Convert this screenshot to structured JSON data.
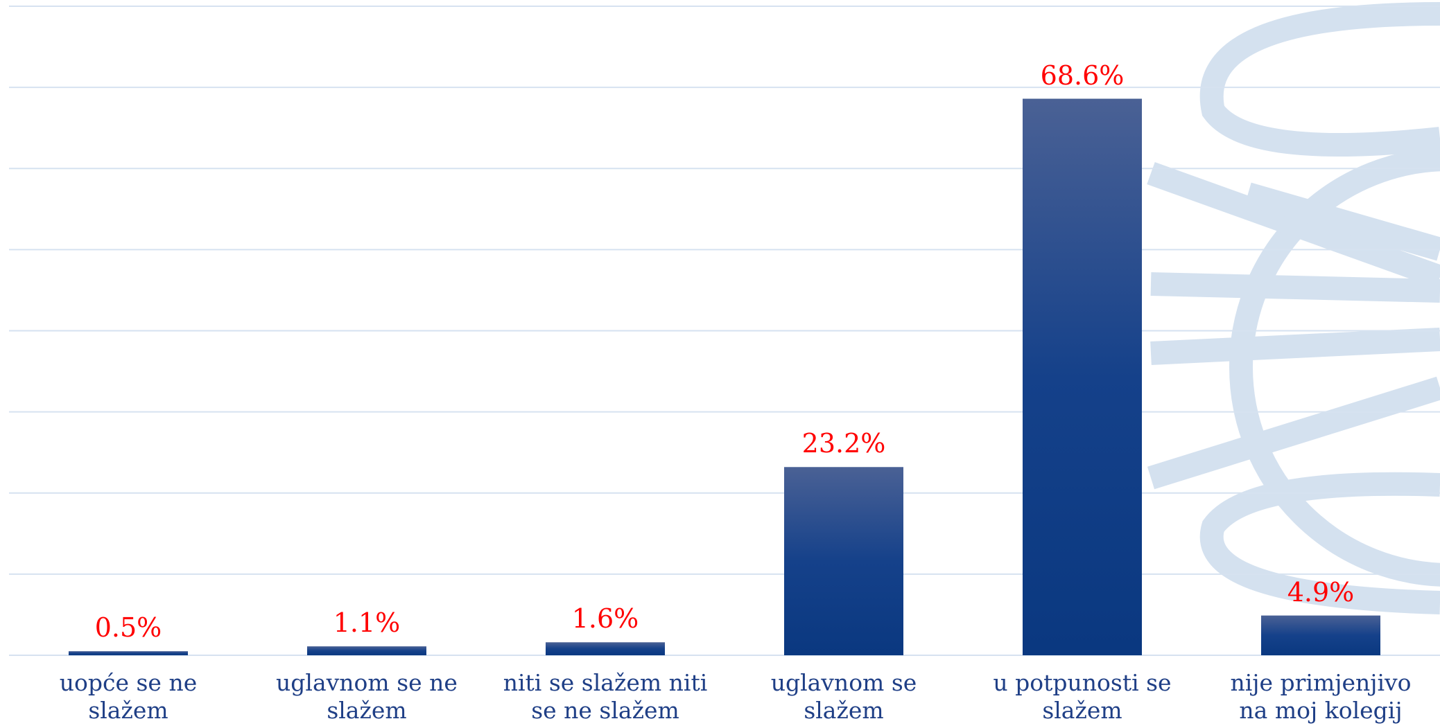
{
  "chart_data": {
    "type": "bar",
    "categories": [
      "uopće se ne slažem",
      "uglavnom se ne slažem",
      "niti se slažem niti se ne slažem",
      "uglavnom se slažem",
      "u potpunosti se slažem",
      "nije primjenjivo na moj kolegij"
    ],
    "values": [
      0.5,
      1.1,
      1.6,
      23.2,
      68.6,
      4.9
    ],
    "value_labels": [
      "0.5%",
      "1.1%",
      "1.6%",
      "23.2%",
      "68.6%",
      "4.9%"
    ],
    "color": "#15418a",
    "value_label_color": "#ff0000",
    "ylim": [
      0,
      80
    ],
    "yticks": [
      0,
      10,
      20,
      30,
      40,
      50,
      60,
      70,
      80
    ],
    "grid": true
  }
}
